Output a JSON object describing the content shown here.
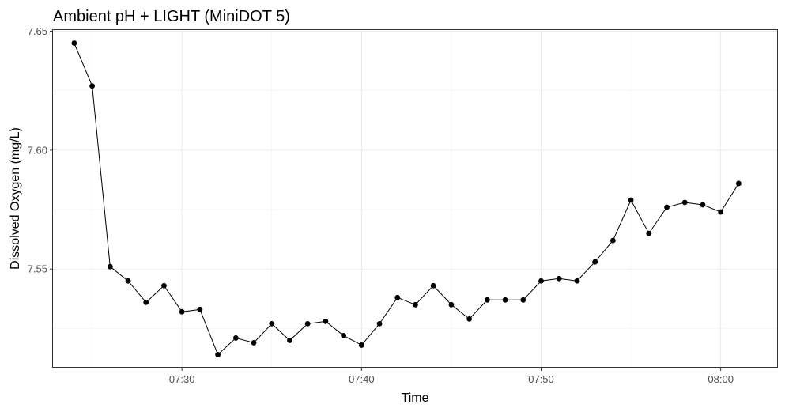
{
  "chart_data": {
    "type": "line",
    "title": "Ambient pH + LIGHT (MiniDOT 5)",
    "xlabel": "Time",
    "ylabel": "Dissolved Oxygen (mg/L)",
    "x_ticks": [
      {
        "label": "07:30",
        "value": "07:30"
      },
      {
        "label": "07:40",
        "value": "07:40"
      },
      {
        "label": "07:50",
        "value": "07:50"
      },
      {
        "label": "08:00",
        "value": "08:00"
      }
    ],
    "y_ticks": [
      7.55,
      7.6,
      7.65
    ],
    "y_tick_labels": [
      "7.55",
      "7.60",
      "7.65"
    ],
    "xlim": [
      "07:22:49",
      "08:03:11"
    ],
    "ylim": [
      7.5085,
      7.6505
    ],
    "grid": true,
    "series": [
      {
        "color": "#000000",
        "x": [
          "07:24",
          "07:25",
          "07:26",
          "07:27",
          "07:28",
          "07:29",
          "07:30",
          "07:31",
          "07:32",
          "07:33",
          "07:34",
          "07:35",
          "07:36",
          "07:37",
          "07:38",
          "07:39",
          "07:40",
          "07:41",
          "07:42",
          "07:43",
          "07:44",
          "07:45",
          "07:46",
          "07:47",
          "07:48",
          "07:49",
          "07:50",
          "07:51",
          "07:52",
          "07:53",
          "07:54",
          "07:55",
          "07:56",
          "07:57",
          "07:58",
          "07:59",
          "08:00",
          "08:01"
        ],
        "values": [
          7.645,
          7.627,
          7.551,
          7.545,
          7.536,
          7.543,
          7.532,
          7.533,
          7.514,
          7.521,
          7.519,
          7.527,
          7.52,
          7.527,
          7.528,
          7.522,
          7.518,
          7.527,
          7.538,
          7.535,
          7.543,
          7.535,
          7.529,
          7.537,
          7.537,
          7.537,
          7.545,
          7.546,
          7.545,
          7.553,
          7.562,
          7.579,
          7.565,
          7.576,
          7.578,
          7.577,
          7.574,
          7.586
        ]
      }
    ]
  }
}
